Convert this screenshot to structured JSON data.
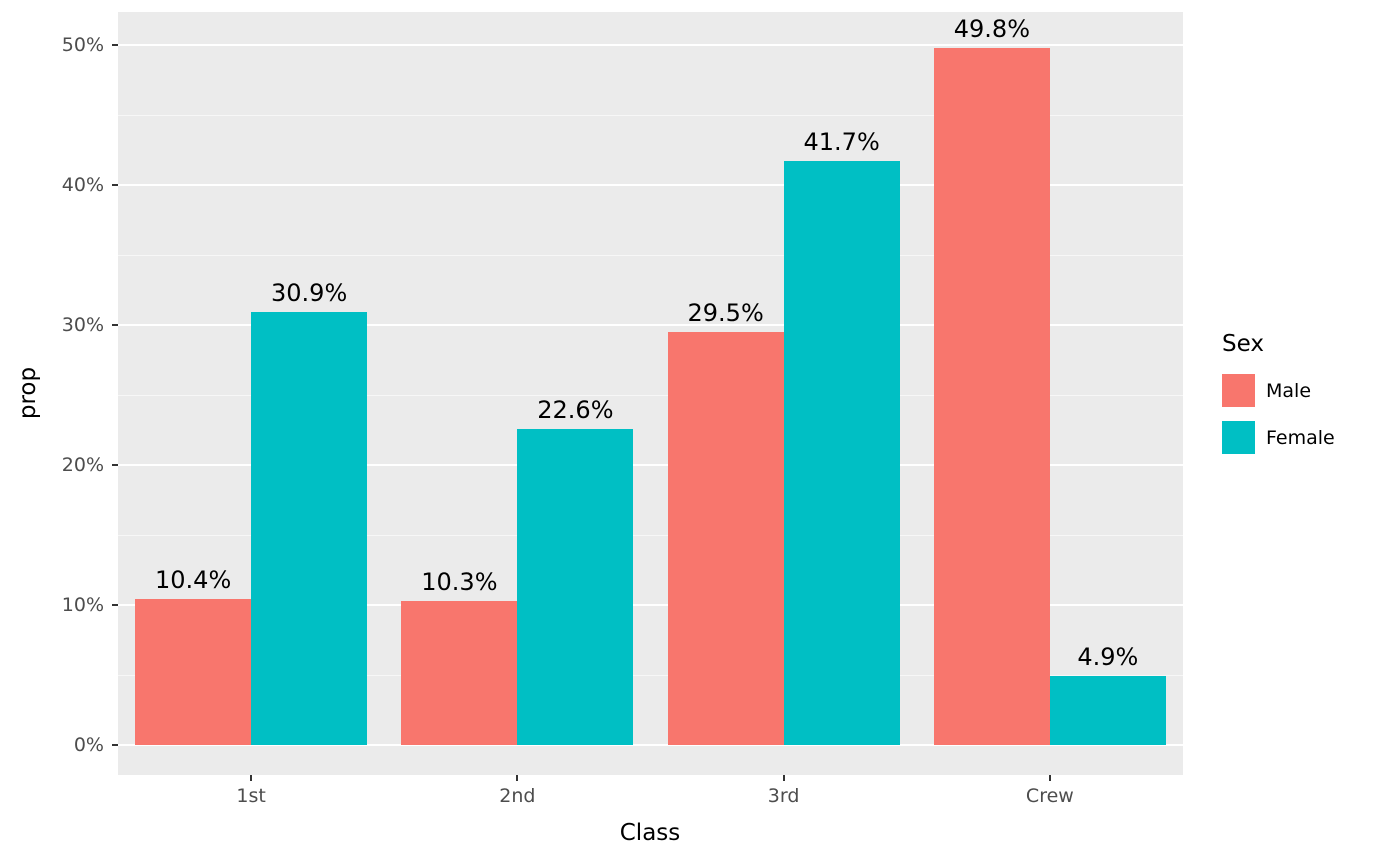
{
  "chart_data": {
    "type": "bar",
    "title": "",
    "xlabel": "Class",
    "ylabel": "prop",
    "categories": [
      "1st",
      "2nd",
      "3rd",
      "Crew"
    ],
    "series": [
      {
        "name": "Male",
        "color": "#F8766D",
        "values": [
          10.4,
          10.3,
          29.5,
          49.8
        ],
        "labels": [
          "10.4%",
          "10.3%",
          "29.5%",
          "49.8%"
        ]
      },
      {
        "name": "Female",
        "color": "#00BFC4",
        "values": [
          30.9,
          22.6,
          41.7,
          4.9
        ],
        "labels": [
          "30.9%",
          "22.6%",
          "41.7%",
          "4.9%"
        ]
      }
    ],
    "y_ticks": [
      "0%",
      "10%",
      "20%",
      "30%",
      "40%",
      "50%"
    ],
    "y_tick_values": [
      0,
      10,
      20,
      30,
      40,
      50
    ],
    "y_minor_tick_values": [
      5,
      15,
      25,
      35,
      45
    ],
    "ylim": [
      0,
      50
    ],
    "grid": true,
    "legend": {
      "title": "Sex",
      "position": "right",
      "entries": [
        "Male",
        "Female"
      ]
    }
  },
  "colors": {
    "panel_bg": "#EBEBEB",
    "grid_major": "#FFFFFF",
    "axis_text": "#4D4D4D",
    "label_text": "#000000",
    "male": "#F8766D",
    "female": "#00BFC4"
  }
}
